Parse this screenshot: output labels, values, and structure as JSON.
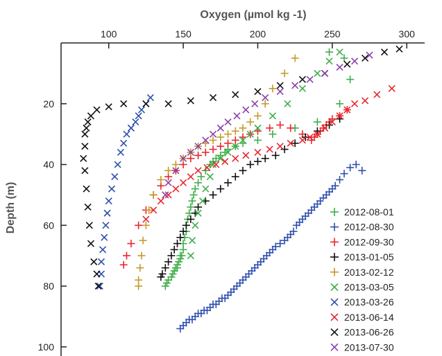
{
  "chart_data": {
    "type": "scatter",
    "xlabel": "Oxygen (µmol kg -1)",
    "ylabel": "Depth (m)",
    "xlim": [
      68,
      312
    ],
    "ylim": [
      0,
      103
    ],
    "y_inverted": true,
    "x_axis_position": "top",
    "xticks": [
      100,
      150,
      200,
      250,
      300
    ],
    "yticks": [
      20,
      40,
      60,
      80,
      100
    ],
    "grid": false,
    "legend_position": "bottom-right",
    "series": [
      {
        "name": "2012-08-01",
        "marker": "plus",
        "color": "#3fae49",
        "x": [
          248,
          258,
          262,
          255,
          240,
          225,
          210,
          200,
          190,
          185,
          180,
          178,
          175,
          172,
          170,
          168,
          165,
          162,
          160,
          158,
          157,
          156,
          155,
          154,
          153,
          152,
          152,
          151,
          150,
          150,
          149,
          148,
          148,
          147,
          146,
          146,
          145,
          144,
          143,
          142,
          140,
          139,
          138
        ],
        "y": [
          3,
          5,
          12,
          20,
          26,
          28,
          30,
          32,
          33,
          34,
          35,
          36,
          37,
          38,
          39,
          40,
          42,
          44,
          46,
          48,
          50,
          52,
          54,
          56,
          58,
          60,
          62,
          64,
          66,
          68,
          70,
          70,
          71,
          72,
          73,
          74,
          74,
          75,
          76,
          77,
          78,
          79,
          80
        ]
      },
      {
        "name": "2012-08-30",
        "marker": "plus",
        "color": "#2e4fae",
        "x": [
          270,
          266,
          262,
          258,
          255,
          252,
          250,
          248,
          246,
          244,
          242,
          240,
          238,
          236,
          234,
          232,
          230,
          228,
          226,
          224,
          222,
          220,
          218,
          215,
          212,
          210,
          208,
          206,
          204,
          202,
          200,
          198,
          196,
          194,
          192,
          190,
          188,
          186,
          184,
          182,
          180,
          178,
          176,
          174,
          172,
          170,
          168,
          166,
          164,
          162,
          160,
          158,
          156,
          154,
          152,
          150,
          148
        ],
        "y": [
          42,
          40,
          41,
          43,
          45,
          47,
          48,
          49,
          50,
          51,
          52,
          53,
          54,
          55,
          56,
          57,
          58,
          59,
          60,
          62,
          63,
          64,
          65,
          66,
          67,
          68,
          69,
          70,
          71,
          72,
          73,
          74,
          75,
          76,
          77,
          78,
          79,
          80,
          81,
          82,
          83,
          84,
          84,
          85,
          86,
          86,
          87,
          88,
          88,
          89,
          89,
          90,
          91,
          91,
          92,
          93,
          94
        ]
      },
      {
        "name": "2012-09-30",
        "marker": "plus",
        "color": "#e8262e",
        "x": [
          260,
          255,
          250,
          248,
          246,
          244,
          242,
          240,
          238,
          236,
          230,
          222,
          215,
          208,
          200,
          195,
          190,
          185,
          180,
          175,
          170,
          165,
          160,
          155,
          150,
          145,
          140,
          135,
          130,
          125,
          120,
          115,
          112,
          110
        ],
        "y": [
          22,
          24,
          25,
          26,
          27,
          28,
          29,
          30,
          31,
          32,
          30,
          28,
          27,
          28,
          29,
          30,
          31,
          32,
          33,
          34,
          35,
          36,
          37,
          38,
          40,
          42,
          44,
          47,
          50,
          55,
          60,
          66,
          70,
          73
        ]
      },
      {
        "name": "2013-01-05",
        "marker": "plus",
        "color": "#111111",
        "x": [
          255,
          248,
          240,
          232,
          225,
          218,
          212,
          205,
          200,
          195,
          190,
          185,
          180,
          175,
          170,
          165,
          160,
          158,
          155,
          152,
          150,
          148,
          146,
          144,
          142,
          140,
          138,
          136,
          135
        ],
        "y": [
          25,
          27,
          29,
          31,
          33,
          35,
          37,
          38,
          39,
          40,
          42,
          44,
          46,
          48,
          50,
          52,
          54,
          56,
          58,
          60,
          62,
          64,
          66,
          68,
          70,
          72,
          74,
          76,
          77
        ]
      },
      {
        "name": "2013-02-12",
        "marker": "plus",
        "color": "#c49a2a",
        "x": [
          225,
          218,
          210,
          205,
          200,
          195,
          190,
          185,
          180,
          175,
          170,
          165,
          160,
          155,
          150,
          145,
          140,
          135,
          130,
          127,
          125,
          123,
          122,
          121,
          120,
          120
        ],
        "y": [
          5,
          10,
          15,
          20,
          24,
          26,
          28,
          29,
          30,
          31,
          32,
          33,
          34,
          36,
          38,
          40,
          42,
          45,
          50,
          55,
          60,
          65,
          70,
          74,
          78,
          80
        ]
      },
      {
        "name": "2013-03-05",
        "marker": "cross",
        "color": "#3fae49",
        "x": [
          255,
          248,
          240,
          230,
          220,
          210,
          200,
          195,
          190,
          185,
          180,
          175,
          170,
          168,
          165,
          163,
          160,
          158,
          156,
          155
        ],
        "y": [
          3,
          6,
          10,
          15,
          20,
          24,
          28,
          30,
          32,
          34,
          36,
          38,
          40,
          44,
          48,
          52,
          56,
          60,
          65,
          70
        ]
      },
      {
        "name": "2013-03-26",
        "marker": "cross",
        "color": "#2e4fae",
        "x": [
          128,
          125,
          122,
          120,
          118,
          115,
          112,
          110,
          108,
          106,
          104,
          102,
          100,
          99,
          98,
          97,
          96,
          95,
          95,
          94
        ],
        "y": [
          18,
          20,
          22,
          24,
          26,
          28,
          30,
          33,
          36,
          40,
          44,
          48,
          52,
          56,
          60,
          64,
          68,
          72,
          76,
          80
        ]
      },
      {
        "name": "2013-06-14",
        "marker": "cross",
        "color": "#e8262e",
        "x": [
          290,
          280,
          272,
          265,
          260,
          255,
          250,
          245,
          240,
          235,
          230,
          222,
          215,
          208,
          200,
          192,
          185,
          178,
          172,
          166,
          160,
          155,
          150,
          145,
          140,
          135,
          130,
          125
        ],
        "y": [
          15,
          17,
          19,
          20,
          22,
          24,
          26,
          28,
          30,
          31,
          32,
          33,
          34,
          35,
          36,
          37,
          38,
          39,
          40,
          41,
          42,
          44,
          46,
          48,
          50,
          52,
          55,
          58
        ]
      },
      {
        "name": "2013-06-26",
        "marker": "cross",
        "color": "#111111",
        "x": [
          295,
          285,
          272,
          260,
          245,
          230,
          215,
          200,
          185,
          170,
          155,
          140,
          125,
          110,
          100,
          92,
          88,
          86,
          85,
          84,
          84,
          83,
          84,
          85,
          86,
          87,
          88,
          90,
          92,
          93
        ],
        "y": [
          2,
          3,
          5,
          7,
          10,
          12,
          14,
          16,
          17,
          18,
          19,
          20,
          20,
          20,
          21,
          22,
          24,
          26,
          28,
          30,
          34,
          38,
          42,
          48,
          54,
          60,
          66,
          72,
          76,
          80
        ]
      },
      {
        "name": "2013-07-30",
        "marker": "cross",
        "color": "#8b3fa8",
        "x": [
          275,
          265,
          255,
          245,
          235,
          225,
          215,
          205,
          198,
          192,
          186,
          180,
          175,
          170,
          165,
          160,
          155,
          150,
          145,
          140,
          138
        ],
        "y": [
          4,
          6,
          8,
          10,
          12,
          14,
          16,
          18,
          20,
          22,
          24,
          26,
          28,
          30,
          32,
          34,
          36,
          38,
          42,
          46,
          50
        ]
      }
    ]
  }
}
